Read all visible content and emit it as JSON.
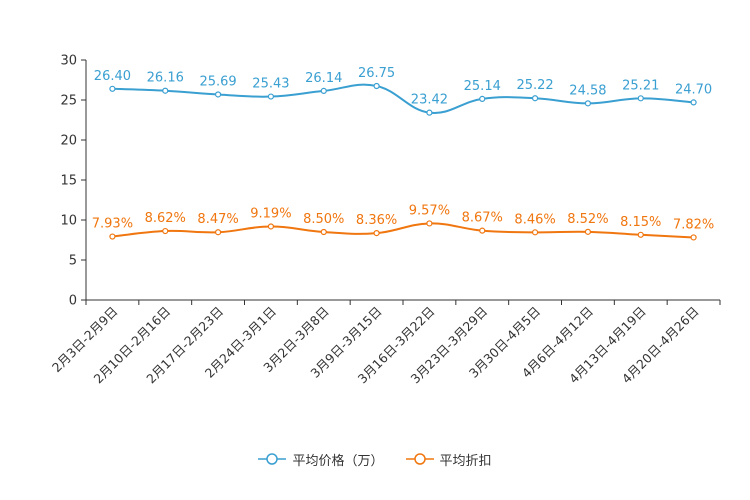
{
  "chart_data": {
    "type": "line",
    "title": "",
    "xlabel": "",
    "ylabel": "",
    "ylim": [
      0,
      30
    ],
    "yticks": [
      0,
      5,
      10,
      15,
      20,
      25,
      30
    ],
    "ytick_labels": [
      "0",
      "5",
      "10",
      "15",
      "20",
      "25",
      "30"
    ],
    "grid": false,
    "legend_position": "bottom-center",
    "categories": [
      "2月3日-2月9日",
      "2月10日-2月16日",
      "2月17日-2月23日",
      "2月24日-3月1日",
      "3月2日-3月8日",
      "3月9日-3月15日",
      "3月16日-3月22日",
      "3月23日-3月29日",
      "3月30日-4月5日",
      "4月6日-4月12日",
      "4月13日-4月19日",
      "4月20日-4月26日"
    ],
    "series": [
      {
        "name": "平均价格（万）",
        "color": "#3a9fd1",
        "values": [
          26.4,
          26.16,
          25.69,
          25.43,
          26.14,
          26.75,
          23.42,
          25.14,
          25.22,
          24.58,
          25.21,
          24.7
        ],
        "labels": [
          "26.40",
          "26.16",
          "25.69",
          "25.43",
          "26.14",
          "26.75",
          "23.42",
          "25.14",
          "25.22",
          "24.58",
          "25.21",
          "24.70"
        ]
      },
      {
        "name": "平均折扣",
        "color": "#f0760f",
        "values": [
          7.93,
          8.62,
          8.47,
          9.19,
          8.5,
          8.36,
          9.57,
          8.67,
          8.46,
          8.52,
          8.15,
          7.82
        ],
        "labels": [
          "7.93%",
          "8.62%",
          "8.47%",
          "9.19%",
          "8.50%",
          "8.36%",
          "9.57%",
          "8.67%",
          "8.46%",
          "8.52%",
          "8.15%",
          "7.82%"
        ]
      }
    ]
  }
}
